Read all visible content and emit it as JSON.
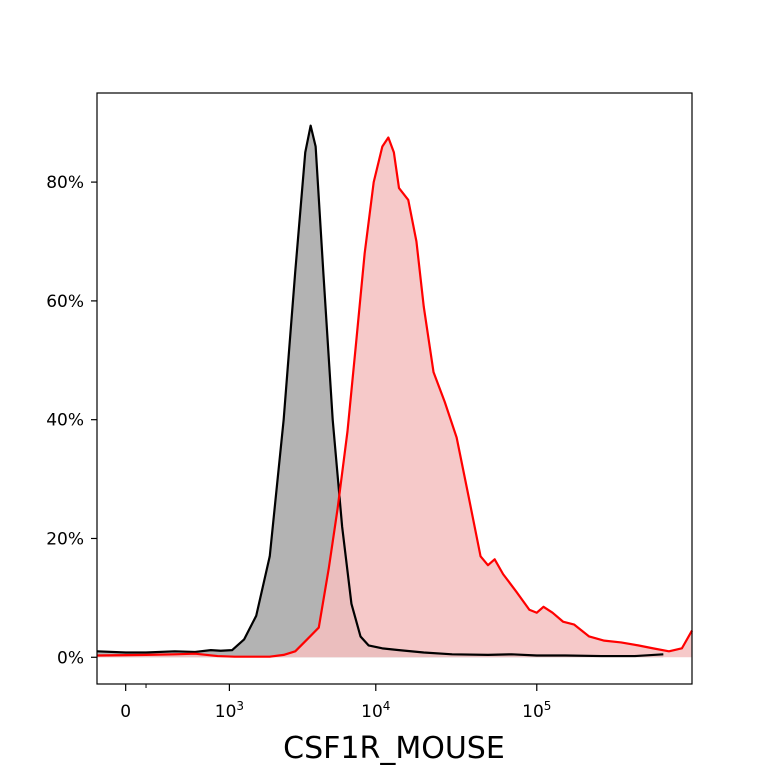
{
  "chart_data": {
    "type": "area",
    "xlabel": "CSF1R_MOUSE",
    "ylabel": "",
    "x_scale": "biexponential",
    "xlim": [
      -150,
      900000
    ],
    "ylim": [
      -0.045,
      0.95
    ],
    "grid": false,
    "x_ticks": [
      {
        "value": 0,
        "label": "0"
      },
      {
        "value": 1000,
        "label": "10",
        "exp": "3"
      },
      {
        "value": 10000,
        "label": "10",
        "exp": "4"
      },
      {
        "value": 100000,
        "label": "10",
        "exp": "5"
      }
    ],
    "y_ticks": [
      {
        "value": 0,
        "label": "0%"
      },
      {
        "value": 0.2,
        "label": "20%"
      },
      {
        "value": 0.4,
        "label": "40%"
      },
      {
        "value": 0.6,
        "label": "60%"
      },
      {
        "value": 0.8,
        "label": "80%"
      }
    ],
    "series": [
      {
        "color": "#000000",
        "fill": "#b3b3b3",
        "points": [
          [
            -150,
            0.01
          ],
          [
            0,
            0.008
          ],
          [
            100,
            0.008
          ],
          [
            300,
            0.01
          ],
          [
            500,
            0.009
          ],
          [
            700,
            0.012
          ],
          [
            850,
            0.011
          ],
          [
            1050,
            0.012
          ],
          [
            1300,
            0.03
          ],
          [
            1600,
            0.07
          ],
          [
            2000,
            0.17
          ],
          [
            2500,
            0.4
          ],
          [
            3000,
            0.65
          ],
          [
            3500,
            0.85
          ],
          [
            3800,
            0.895
          ],
          [
            4100,
            0.86
          ],
          [
            4600,
            0.65
          ],
          [
            5300,
            0.4
          ],
          [
            6100,
            0.22
          ],
          [
            7000,
            0.09
          ],
          [
            8000,
            0.035
          ],
          [
            9000,
            0.02
          ],
          [
            11000,
            0.015
          ],
          [
            14000,
            0.012
          ],
          [
            20000,
            0.008
          ],
          [
            30000,
            0.005
          ],
          [
            50000,
            0.004
          ],
          [
            70000,
            0.005
          ],
          [
            100000,
            0.003
          ],
          [
            150000,
            0.003
          ],
          [
            250000,
            0.002
          ],
          [
            400000,
            0.002
          ],
          [
            600000,
            0.005
          ]
        ]
      },
      {
        "color": "#ff0000",
        "fill": "#f4bfbf",
        "points": [
          [
            -150,
            0.003
          ],
          [
            100,
            0.004
          ],
          [
            300,
            0.005
          ],
          [
            500,
            0.006
          ],
          [
            800,
            0.002
          ],
          [
            1100,
            0.001
          ],
          [
            1500,
            0.001
          ],
          [
            2000,
            0.001
          ],
          [
            2500,
            0.004
          ],
          [
            3000,
            0.01
          ],
          [
            3600,
            0.03
          ],
          [
            4300,
            0.05
          ],
          [
            5000,
            0.15
          ],
          [
            5700,
            0.25
          ],
          [
            6600,
            0.38
          ],
          [
            7500,
            0.53
          ],
          [
            8500,
            0.68
          ],
          [
            9700,
            0.8
          ],
          [
            11000,
            0.86
          ],
          [
            12000,
            0.875
          ],
          [
            13000,
            0.85
          ],
          [
            14000,
            0.79
          ],
          [
            16000,
            0.77
          ],
          [
            18000,
            0.7
          ],
          [
            20000,
            0.59
          ],
          [
            23000,
            0.48
          ],
          [
            27000,
            0.43
          ],
          [
            32000,
            0.37
          ],
          [
            38000,
            0.27
          ],
          [
            45000,
            0.17
          ],
          [
            50000,
            0.155
          ],
          [
            55000,
            0.165
          ],
          [
            62000,
            0.14
          ],
          [
            75000,
            0.11
          ],
          [
            90000,
            0.08
          ],
          [
            100000,
            0.075
          ],
          [
            110000,
            0.085
          ],
          [
            125000,
            0.075
          ],
          [
            145000,
            0.06
          ],
          [
            170000,
            0.055
          ],
          [
            210000,
            0.035
          ],
          [
            260000,
            0.028
          ],
          [
            330000,
            0.025
          ],
          [
            420000,
            0.02
          ],
          [
            520000,
            0.015
          ],
          [
            650000,
            0.01
          ],
          [
            780000,
            0.015
          ],
          [
            900000,
            0.045
          ]
        ]
      }
    ]
  }
}
